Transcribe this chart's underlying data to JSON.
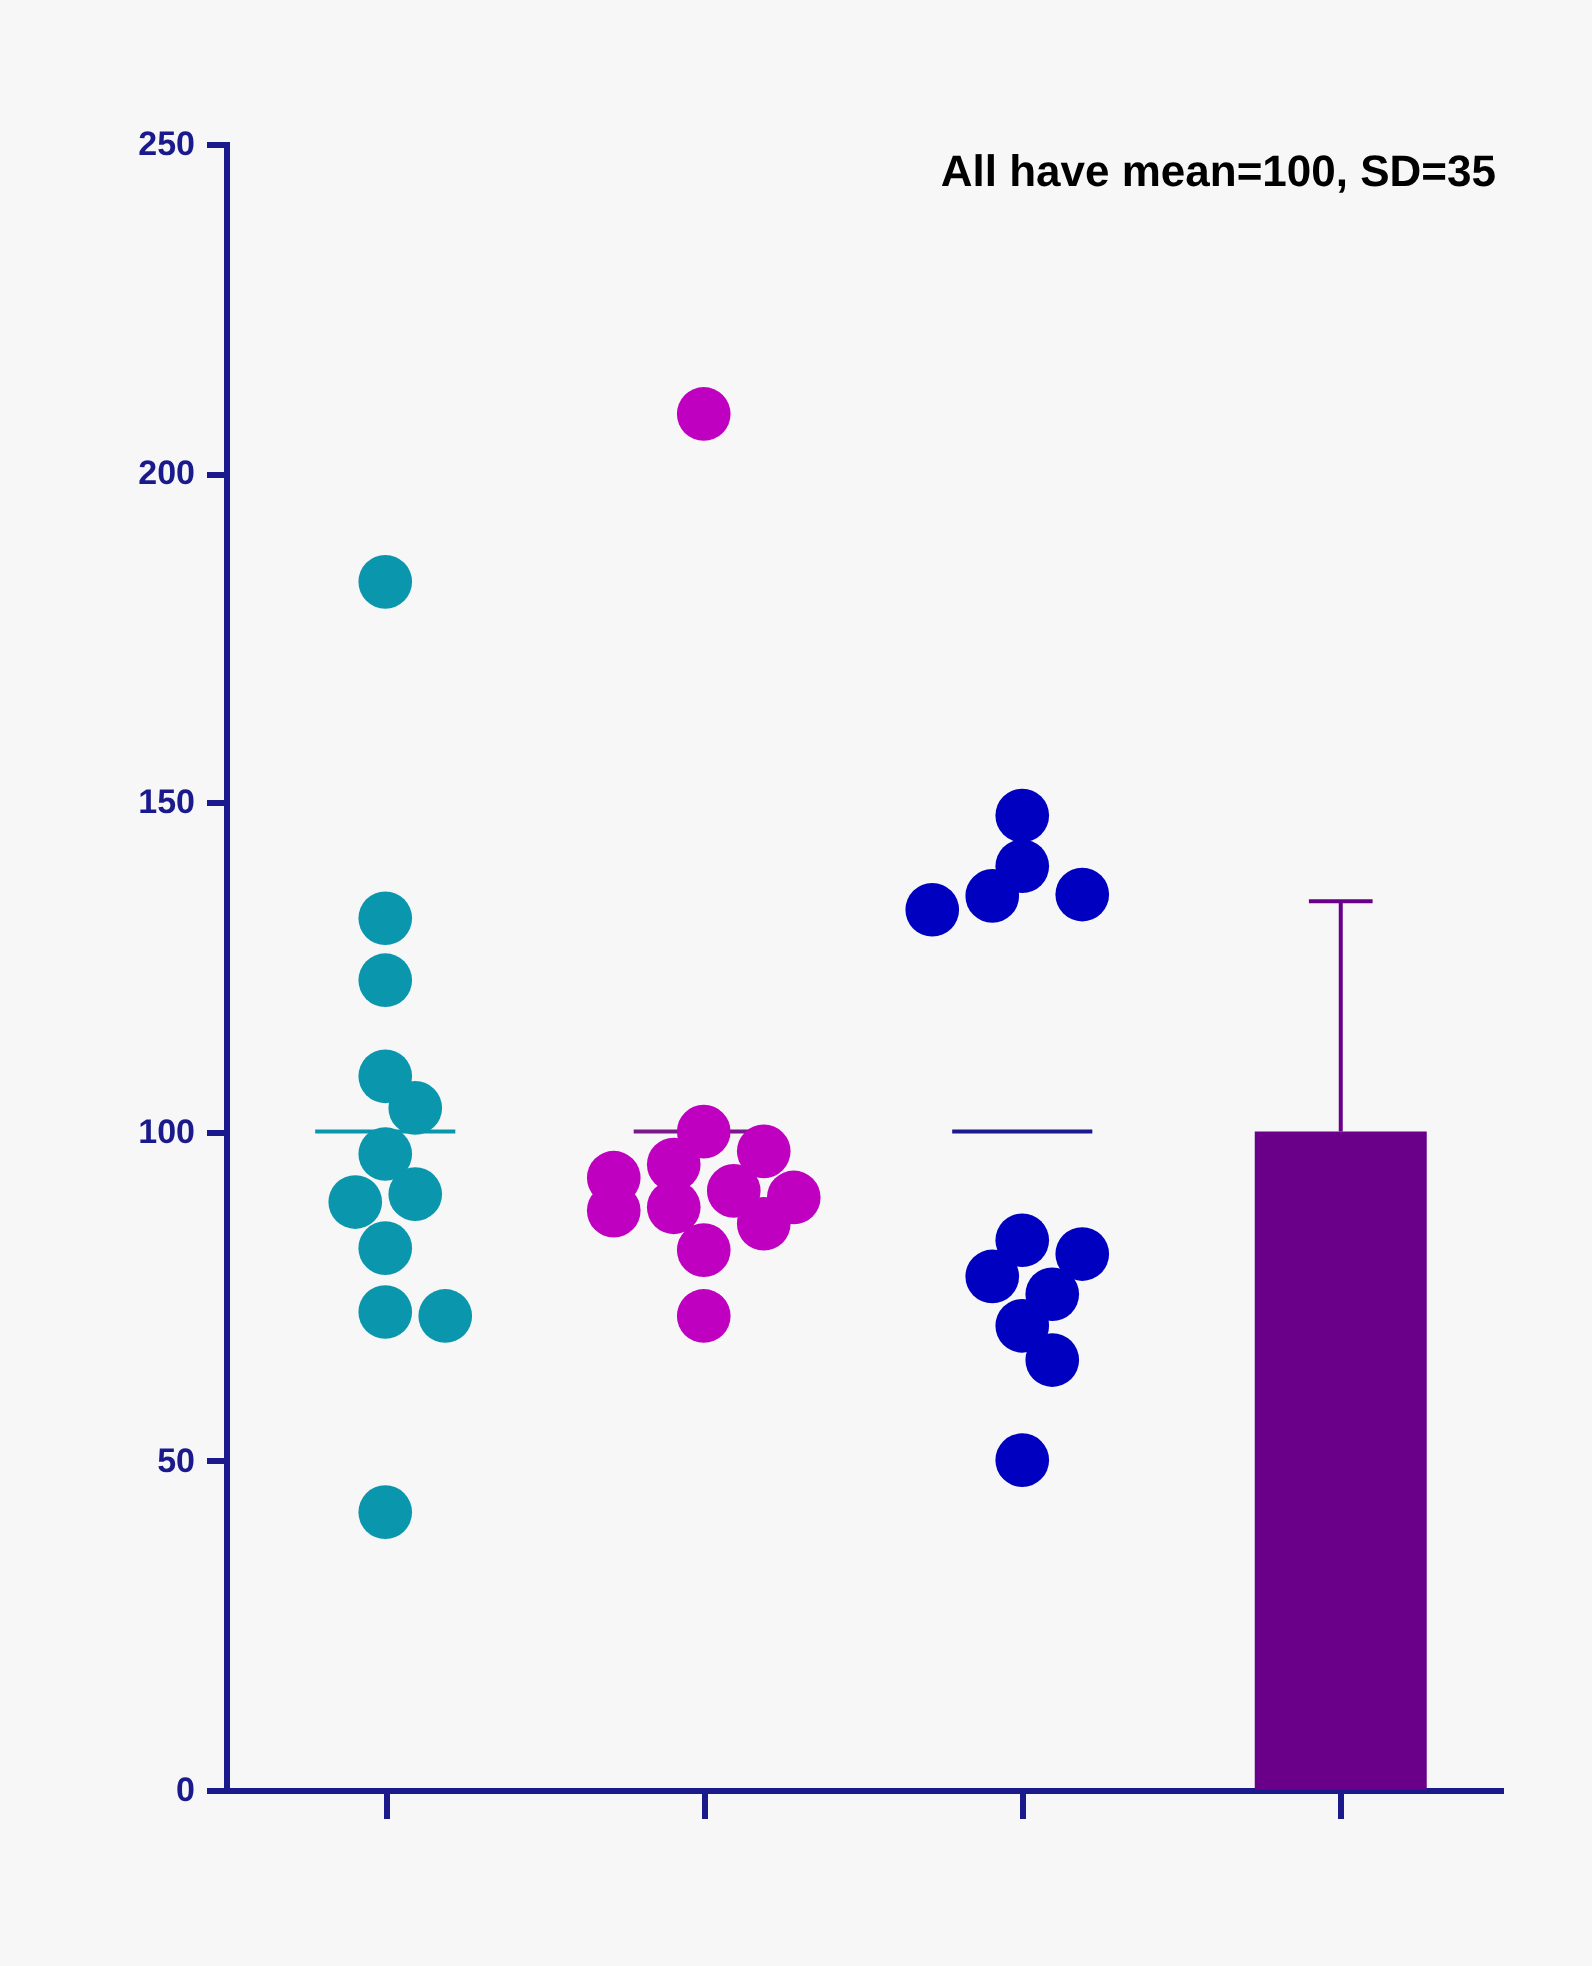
{
  "chart_data": {
    "type": "bar",
    "title": "All have mean=100, SD=35",
    "categories": [
      null,
      null,
      null,
      null
    ],
    "series": [
      {
        "color": "#6a008a",
        "values": [
          null,
          null,
          null,
          100
        ],
        "errors": [
          null,
          null,
          null,
          [
            100,
            135
          ]
        ]
      },
      {
        "type": "box",
        "colors": [
          "#0a97ad",
          "#7a1a8a",
          "#1a1a8c",
          null
        ],
        "boxes": [
          {
            "low": 100,
            "q1": 100,
            "median": 100,
            "q3": 100,
            "high": 100
          },
          {
            "low": 100,
            "q1": 100,
            "median": 100,
            "q3": 100,
            "high": 100
          },
          {
            "low": 100,
            "q1": 100,
            "median": 100,
            "q3": 100,
            "high": 100
          },
          null
        ]
      },
      {
        "type": "scatter",
        "colors": [
          "#0a97ad",
          "#c000c0",
          "#0000c0",
          null
        ],
        "values": [
          183.5,
          209,
          148,
          null
        ]
      },
      {
        "type": "scatter",
        "colors": [
          "#0a97ad",
          "#c000c0",
          "#0000c0",
          null
        ],
        "values": [
          132.4,
          100,
          140.3,
          null
        ]
      },
      {
        "type": "scatter",
        "colors": [
          "#0a97ad",
          "#c000c0",
          "#0000c0",
          null
        ],
        "values": [
          123,
          97,
          136,
          null
        ]
      },
      {
        "type": "scatter",
        "colors": [
          "#0a97ad",
          "#c000c0",
          "#0000c0",
          null
        ],
        "values": [
          108.4,
          95,
          135.8,
          null
        ]
      },
      {
        "type": "scatter",
        "colors": [
          "#0a97ad",
          "#c000c0",
          "#0000c0",
          null
        ],
        "values": [
          103.6,
          93,
          133.7,
          null
        ]
      },
      {
        "type": "scatter",
        "colors": [
          "#0a97ad",
          "#c000c0",
          "#0000c0",
          null
        ],
        "values": [
          96.6,
          91,
          83.5,
          null
        ]
      },
      {
        "type": "scatter",
        "colors": [
          "#0a97ad",
          "#c000c0",
          "#0000c0",
          null
        ],
        "values": [
          90.5,
          90,
          81.4,
          null
        ]
      },
      {
        "type": "scatter",
        "colors": [
          "#0a97ad",
          "#c000c0",
          "#0000c0",
          null
        ],
        "values": [
          89.3,
          88.5,
          78,
          null
        ]
      },
      {
        "type": "scatter",
        "colors": [
          "#0a97ad",
          "#c000c0",
          "#0000c0",
          null
        ],
        "values": [
          82.3,
          88,
          75.3,
          null
        ]
      },
      {
        "type": "scatter",
        "colors": [
          "#0a97ad",
          "#c000c0",
          "#0000c0",
          null
        ],
        "values": [
          72.6,
          86,
          70.5,
          null
        ]
      },
      {
        "type": "scatter",
        "colors": [
          "#0a97ad",
          "#c000c0",
          "#0000c0",
          null
        ],
        "values": [
          72,
          82,
          65.3,
          null
        ]
      },
      {
        "type": "scatter",
        "colors": [
          "#0a97ad",
          "#c000c0",
          "#0000c0",
          null
        ],
        "values": [
          42.2,
          72,
          50.1,
          null
        ]
      }
    ],
    "ylim": [
      0,
      250
    ],
    "yticks": [
      0,
      50,
      100,
      150,
      200,
      250
    ],
    "grid": false,
    "marker": "circle"
  }
}
